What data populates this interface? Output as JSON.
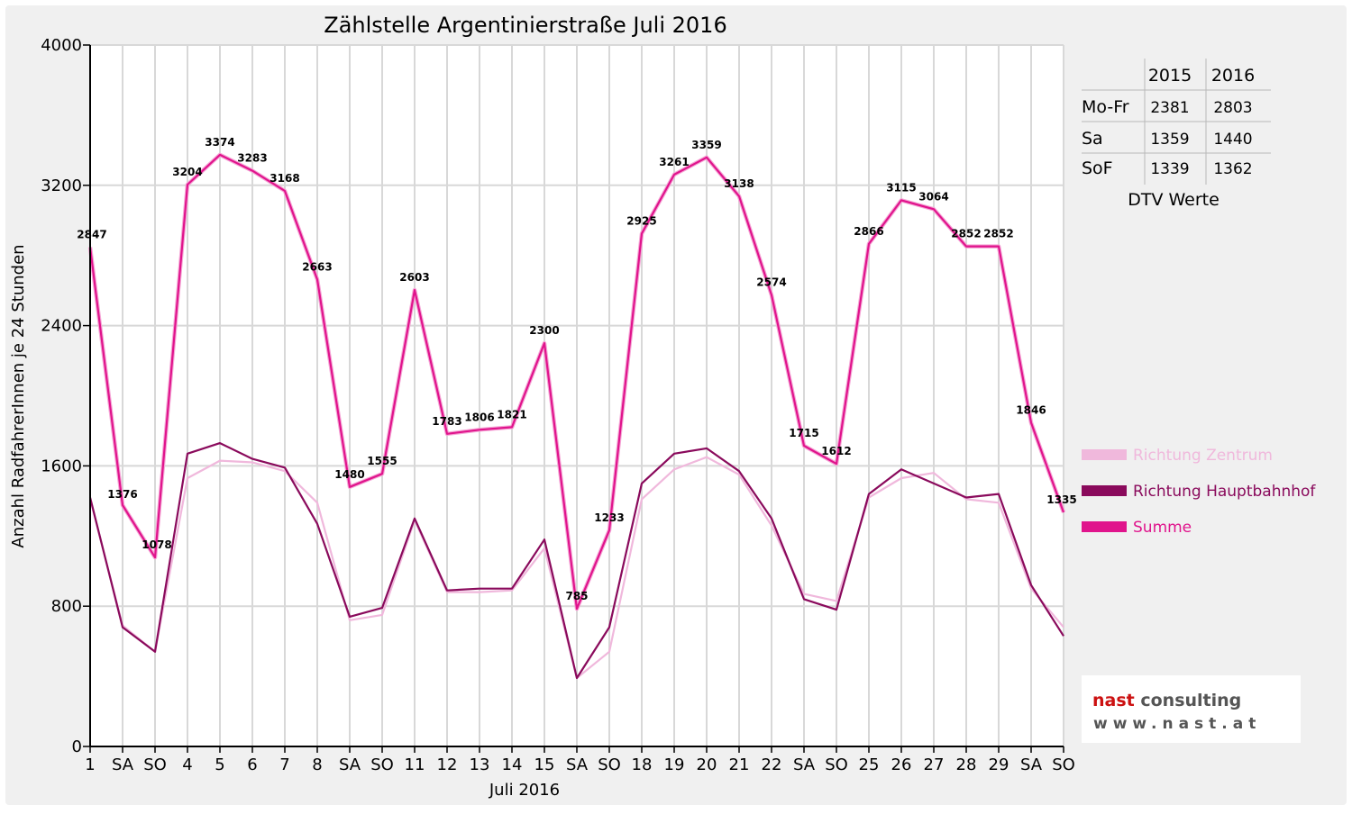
{
  "chart_data": {
    "type": "line",
    "title": "Zählstelle Argentinierstraße Juli 2016",
    "xlabel": "Juli 2016",
    "ylabel": "Anzahl RadfahrerInnen je 24 Stunden",
    "ylim": [
      0,
      4000
    ],
    "yticks": [
      "0",
      "800",
      "1600",
      "2400",
      "3200",
      "4000"
    ],
    "grid": true,
    "legend_position": "right",
    "categories": [
      "1",
      "SA",
      "SO",
      "4",
      "5",
      "6",
      "7",
      "8",
      "SA",
      "SO",
      "11",
      "12",
      "13",
      "14",
      "15",
      "SA",
      "SO",
      "18",
      "19",
      "20",
      "21",
      "22",
      "SA",
      "SO",
      "25",
      "26",
      "27",
      "28",
      "29",
      "SA",
      "SO"
    ],
    "weekend_red_label": "SO",
    "series": [
      {
        "name": "Richtung Zentrum",
        "color": "#f0b8dc",
        "values": [
          1410,
          690,
          540,
          1530,
          1630,
          1620,
          1570,
          1390,
          720,
          750,
          1290,
          880,
          880,
          890,
          1130,
          390,
          540,
          1410,
          1580,
          1650,
          1550,
          1260,
          870,
          830,
          1420,
          1530,
          1560,
          1410,
          1390,
          900,
          680
        ]
      },
      {
        "name": "Richtung Hauptbahnhof",
        "color": "#8a0a5c",
        "values": [
          1420,
          680,
          540,
          1670,
          1730,
          1640,
          1590,
          1270,
          740,
          790,
          1300,
          890,
          900,
          900,
          1180,
          390,
          680,
          1500,
          1670,
          1700,
          1570,
          1300,
          840,
          780,
          1440,
          1580,
          1500,
          1420,
          1440,
          920,
          630
        ]
      },
      {
        "name": "Summe",
        "color": "#e0148c",
        "values": [
          2847,
          1376,
          1078,
          3204,
          3374,
          3283,
          3168,
          2663,
          1480,
          1555,
          2603,
          1783,
          1806,
          1821,
          2300,
          785,
          1233,
          2925,
          3261,
          3359,
          3138,
          2574,
          1715,
          1612,
          2866,
          3115,
          3064,
          2852,
          2852,
          1846,
          1335
        ],
        "data_labels": [
          "2847",
          "1376",
          "1078",
          "3204",
          "3374",
          "3283",
          "3168",
          "2663",
          "1480",
          "1555",
          "2603",
          "1783",
          "1806",
          "1821",
          "2300",
          "785",
          "1233",
          "2925",
          "3261",
          "3359",
          "3138",
          "2574",
          "1715",
          "1612",
          "2866",
          "3115",
          "3064",
          "2852",
          "2852",
          "1846",
          "1335"
        ]
      }
    ],
    "dtv_table": {
      "headers": [
        "2015",
        "2016"
      ],
      "rows": [
        {
          "label": "Mo-Fr",
          "v2015": "2381",
          "v2016": "2803"
        },
        {
          "label": "Sa",
          "v2015": "1359",
          "v2016": "1440"
        },
        {
          "label": "SoF",
          "v2015": "1339",
          "v2016": "1362"
        }
      ],
      "caption": "DTV Werte"
    },
    "logo": {
      "line1_part1": "nast",
      "line1_part2": " consulting",
      "line2": "www.nast.at",
      "red": "#cc1111",
      "grey": "#555555"
    }
  }
}
